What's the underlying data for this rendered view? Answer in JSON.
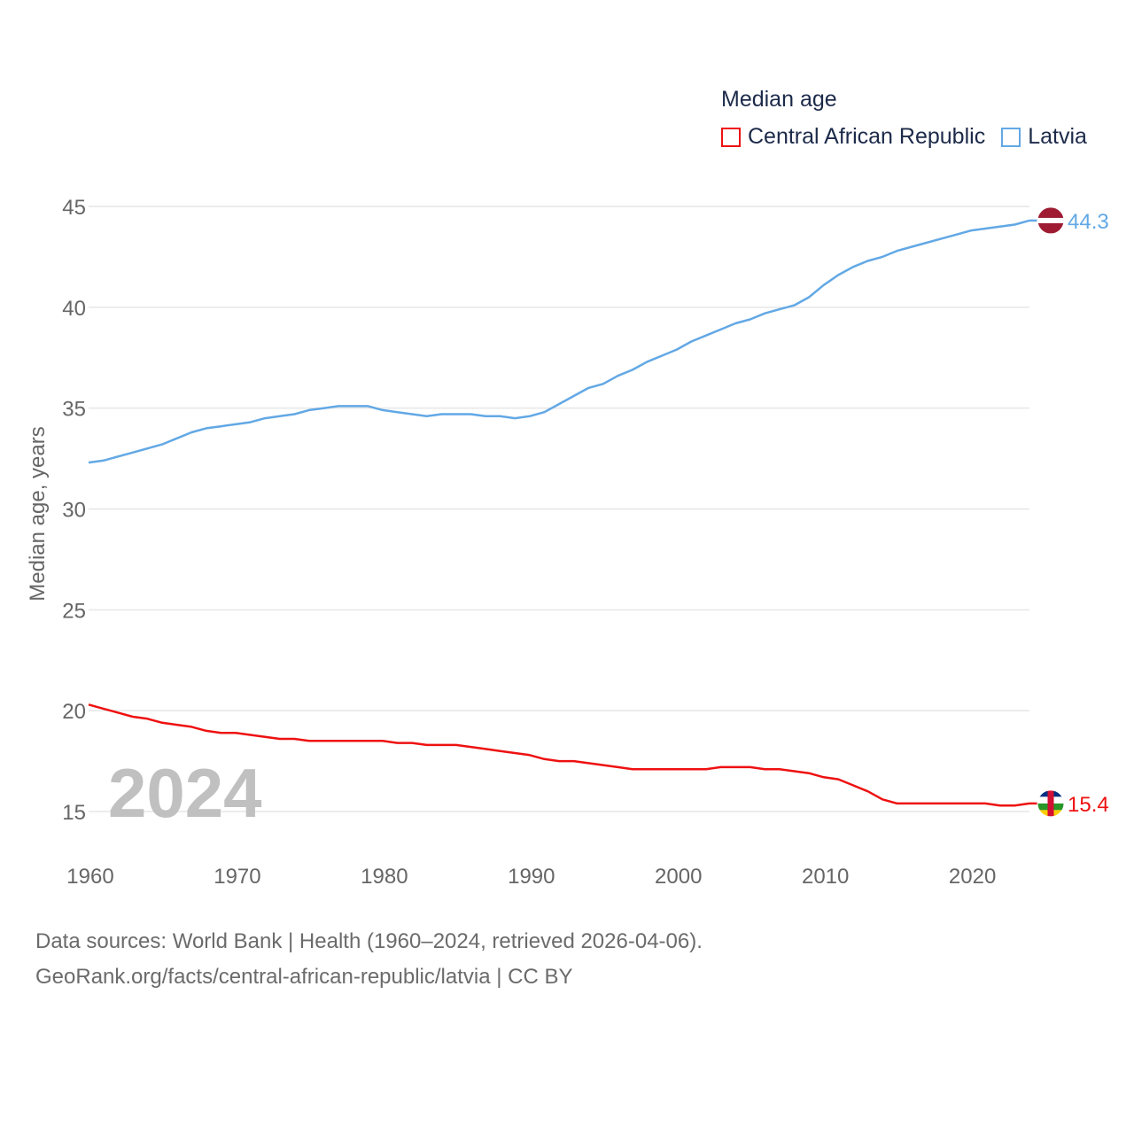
{
  "chart_data": {
    "type": "line",
    "title": "Median age",
    "ylabel": "Median age, years",
    "xlabel": "",
    "xlim": [
      1960,
      2024
    ],
    "ylim": [
      13,
      47
    ],
    "yticks": [
      15,
      20,
      25,
      30,
      35,
      40,
      45
    ],
    "xticks": [
      1960,
      1970,
      1980,
      1990,
      2000,
      2010,
      2020
    ],
    "year_label": "2024",
    "x": [
      1960,
      1961,
      1962,
      1963,
      1964,
      1965,
      1966,
      1967,
      1968,
      1969,
      1970,
      1971,
      1972,
      1973,
      1974,
      1975,
      1976,
      1977,
      1978,
      1979,
      1980,
      1981,
      1982,
      1983,
      1984,
      1985,
      1986,
      1987,
      1988,
      1989,
      1990,
      1991,
      1992,
      1993,
      1994,
      1995,
      1996,
      1997,
      1998,
      1999,
      2000,
      2001,
      2002,
      2003,
      2004,
      2005,
      2006,
      2007,
      2008,
      2009,
      2010,
      2011,
      2012,
      2013,
      2014,
      2015,
      2016,
      2017,
      2018,
      2019,
      2020,
      2021,
      2022,
      2023,
      2024
    ],
    "series": [
      {
        "name": "Central African Republic",
        "color": "#ee1111",
        "end_label": "15.4",
        "flag": "central-african-republic",
        "values": [
          20.3,
          20.1,
          19.9,
          19.7,
          19.6,
          19.4,
          19.3,
          19.2,
          19.0,
          18.9,
          18.9,
          18.8,
          18.7,
          18.6,
          18.6,
          18.5,
          18.5,
          18.5,
          18.5,
          18.5,
          18.5,
          18.4,
          18.4,
          18.3,
          18.3,
          18.3,
          18.2,
          18.1,
          18.0,
          17.9,
          17.8,
          17.6,
          17.5,
          17.5,
          17.4,
          17.3,
          17.2,
          17.1,
          17.1,
          17.1,
          17.1,
          17.1,
          17.1,
          17.2,
          17.2,
          17.2,
          17.1,
          17.1,
          17.0,
          16.9,
          16.7,
          16.6,
          16.3,
          16.0,
          15.6,
          15.4,
          15.4,
          15.4,
          15.4,
          15.4,
          15.4,
          15.4,
          15.3,
          15.3,
          15.4
        ]
      },
      {
        "name": "Latvia",
        "color": "#62a8e5",
        "end_label": "44.3",
        "flag": "latvia",
        "values": [
          32.3,
          32.4,
          32.6,
          32.8,
          33.0,
          33.2,
          33.5,
          33.8,
          34.0,
          34.1,
          34.2,
          34.3,
          34.5,
          34.6,
          34.7,
          34.9,
          35.0,
          35.1,
          35.1,
          35.1,
          34.9,
          34.8,
          34.7,
          34.6,
          34.7,
          34.7,
          34.7,
          34.6,
          34.6,
          34.5,
          34.6,
          34.8,
          35.2,
          35.6,
          36.0,
          36.2,
          36.6,
          36.9,
          37.3,
          37.6,
          37.9,
          38.3,
          38.6,
          38.9,
          39.2,
          39.4,
          39.7,
          39.9,
          40.1,
          40.5,
          41.1,
          41.6,
          42.0,
          42.3,
          42.5,
          42.8,
          43.0,
          43.2,
          43.4,
          43.6,
          43.8,
          43.9,
          44.0,
          44.1,
          44.3
        ]
      }
    ]
  },
  "legend": {
    "title": "Median age",
    "items": [
      {
        "label": "Central African Republic",
        "color": "#ee1111"
      },
      {
        "label": "Latvia",
        "color": "#62a8e5"
      }
    ]
  },
  "footer": {
    "line1": "Data sources: World Bank | Health (1960–2024, retrieved 2026-04-06).",
    "line2": "GeoRank.org/facts/central-african-republic/latvia | CC BY"
  }
}
